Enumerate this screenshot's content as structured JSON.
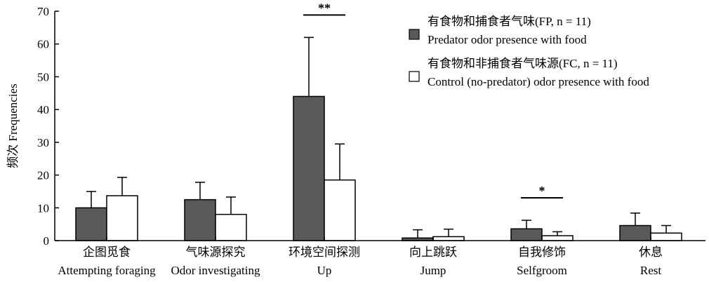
{
  "chart_data": {
    "type": "bar",
    "ylabel": "频次 Frequencies",
    "ylim": [
      0,
      70
    ],
    "yticks": [
      0,
      10,
      20,
      30,
      40,
      50,
      60,
      70
    ],
    "grid": false,
    "legend_position": "top-right",
    "categories": [
      {
        "zh": "企图觅食",
        "en": "Attempting foraging"
      },
      {
        "zh": "气味源探究",
        "en": "Odor investigating"
      },
      {
        "zh": "环境空间探测",
        "en": "Up"
      },
      {
        "zh": "向上跳跃",
        "en": "Jump"
      },
      {
        "zh": "自我修饰",
        "en": "Selfgroom"
      },
      {
        "zh": "休息",
        "en": "Rest"
      }
    ],
    "series": [
      {
        "name_zh": "有食物和捕食者气味(FP, n = 11)",
        "name_en": "Predator odor presence with food",
        "color": "#5a5a5a",
        "values": [
          10.0,
          12.5,
          44.0,
          0.8,
          3.6,
          4.6
        ],
        "errors": [
          5.0,
          5.3,
          18.0,
          2.5,
          2.6,
          3.8
        ]
      },
      {
        "name_zh": "有食物和非捕食者气味源(FC, n = 11)",
        "name_en": "Control (no-predator) odor presence with food",
        "color": "#ffffff",
        "values": [
          13.7,
          8.0,
          18.5,
          1.2,
          1.5,
          2.3
        ],
        "errors": [
          5.6,
          5.3,
          11.0,
          2.3,
          1.2,
          2.3
        ]
      }
    ],
    "significance": [
      {
        "category_index": 2,
        "label": "**"
      },
      {
        "category_index": 4,
        "label": "*"
      }
    ]
  }
}
